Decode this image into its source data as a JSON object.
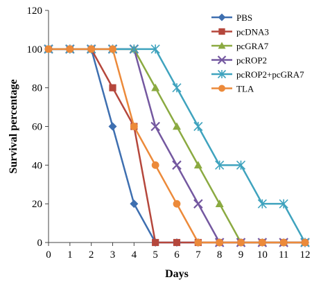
{
  "chart_data": {
    "type": "line",
    "title": "",
    "xlabel": "Days",
    "ylabel": "Survival percentage",
    "x": [
      0,
      1,
      2,
      3,
      4,
      5,
      6,
      7,
      8,
      9,
      10,
      11,
      12
    ],
    "xlim": [
      0,
      12
    ],
    "ylim": [
      0,
      120
    ],
    "yticks": [
      0,
      20,
      40,
      60,
      80,
      100,
      120
    ],
    "grid": false,
    "legend_position": "top-right",
    "series": [
      {
        "name": "PBS",
        "color": "#3E6FB0",
        "marker": "diamond",
        "points": [
          [
            0,
            100
          ],
          [
            1,
            100
          ],
          [
            2,
            100
          ],
          [
            3,
            60
          ],
          [
            4,
            20
          ],
          [
            5,
            0
          ],
          [
            6,
            0
          ],
          [
            7,
            0
          ],
          [
            8,
            0
          ],
          [
            9,
            0
          ],
          [
            10,
            0
          ],
          [
            11,
            0
          ],
          [
            12,
            0
          ]
        ]
      },
      {
        "name": "pcDNA3",
        "color": "#B5473C",
        "marker": "square",
        "points": [
          [
            0,
            100
          ],
          [
            1,
            100
          ],
          [
            2,
            100
          ],
          [
            3,
            80
          ],
          [
            4,
            60
          ],
          [
            5,
            0
          ],
          [
            6,
            0
          ],
          [
            7,
            0
          ],
          [
            8,
            0
          ],
          [
            9,
            0
          ],
          [
            10,
            0
          ],
          [
            11,
            0
          ],
          [
            12,
            0
          ]
        ]
      },
      {
        "name": "pcGRA7",
        "color": "#8BAA41",
        "marker": "triangle",
        "points": [
          [
            0,
            100
          ],
          [
            1,
            100
          ],
          [
            2,
            100
          ],
          [
            3,
            100
          ],
          [
            4,
            100
          ],
          [
            5,
            80
          ],
          [
            6,
            60
          ],
          [
            7,
            40
          ],
          [
            8,
            20
          ],
          [
            9,
            0
          ],
          [
            10,
            0
          ],
          [
            11,
            0
          ],
          [
            12,
            0
          ]
        ]
      },
      {
        "name": "pcROP2",
        "color": "#7458A0",
        "marker": "x",
        "points": [
          [
            0,
            100
          ],
          [
            1,
            100
          ],
          [
            2,
            100
          ],
          [
            3,
            100
          ],
          [
            4,
            100
          ],
          [
            5,
            60
          ],
          [
            6,
            40
          ],
          [
            7,
            20
          ],
          [
            8,
            0
          ],
          [
            9,
            0
          ],
          [
            10,
            0
          ],
          [
            11,
            0
          ],
          [
            12,
            0
          ]
        ]
      },
      {
        "name": "pcROP2+pcGRA7",
        "color": "#3FA3BE",
        "marker": "star",
        "points": [
          [
            0,
            100
          ],
          [
            1,
            100
          ],
          [
            2,
            100
          ],
          [
            3,
            100
          ],
          [
            4,
            100
          ],
          [
            5,
            100
          ],
          [
            6,
            80
          ],
          [
            7,
            60
          ],
          [
            8,
            40
          ],
          [
            9,
            40
          ],
          [
            10,
            20
          ],
          [
            11,
            20
          ],
          [
            12,
            0
          ]
        ]
      },
      {
        "name": "TLA",
        "color": "#EC8A3A",
        "marker": "circle",
        "points": [
          [
            0,
            100
          ],
          [
            1,
            100
          ],
          [
            2,
            100
          ],
          [
            3,
            100
          ],
          [
            4,
            60
          ],
          [
            5,
            40
          ],
          [
            6,
            20
          ],
          [
            7,
            0
          ],
          [
            8,
            0
          ],
          [
            9,
            0
          ],
          [
            10,
            0
          ],
          [
            11,
            0
          ],
          [
            12,
            0
          ]
        ]
      }
    ]
  }
}
